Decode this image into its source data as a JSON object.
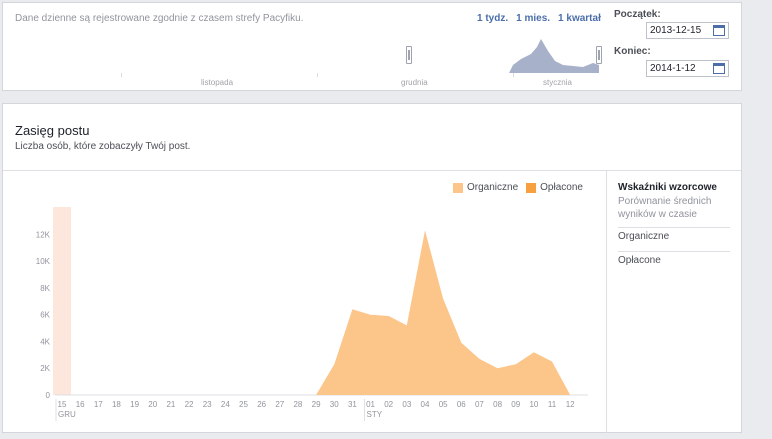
{
  "top": {
    "timezone_note": "Dane dzienne są rejestrowane zgodnie z czasem strefy Pacyfiku.",
    "range_links": [
      "1 tydz.",
      "1 mies.",
      "1 kwartał"
    ],
    "timeline_labels": [
      "listopada",
      "grudnia",
      "stycznia"
    ],
    "start_label": "Początek:",
    "start_value": "2013-12-15",
    "end_label": "Koniec:",
    "end_value": "2014-1-12"
  },
  "main": {
    "title": "Zasięg postu",
    "subtitle": "Liczba osób, które zobaczyły Twój post.",
    "legend": [
      {
        "label": "Organiczne",
        "color": "#fcc58a"
      },
      {
        "label": "Opłacone",
        "color": "#f6a040"
      }
    ],
    "sidebar": {
      "heading": "Wskaźniki wzorcowe",
      "description": "Porównanie średnich wyników w czasie",
      "items": [
        "Organiczne",
        "Opłacone"
      ]
    }
  },
  "chart_data": {
    "type": "area",
    "x": [
      "15",
      "16",
      "17",
      "18",
      "19",
      "20",
      "21",
      "22",
      "23",
      "24",
      "25",
      "26",
      "27",
      "28",
      "29",
      "30",
      "31",
      "01",
      "02",
      "03",
      "04",
      "05",
      "06",
      "07",
      "08",
      "09",
      "10",
      "11",
      "12"
    ],
    "month_labels": [
      {
        "at": "15",
        "label": "GRU"
      },
      {
        "at": "01",
        "label": "STY"
      }
    ],
    "y_ticks": [
      "0",
      "2K",
      "4K",
      "6K",
      "8K",
      "10K",
      "12K"
    ],
    "ylim": [
      0,
      13000
    ],
    "highlight_category": "15",
    "series": [
      {
        "name": "Organiczne",
        "color": "#fcc58a",
        "values": [
          0,
          0,
          0,
          0,
          0,
          0,
          0,
          0,
          0,
          0,
          0,
          0,
          0,
          0,
          0,
          2300,
          6400,
          6000,
          5900,
          5200,
          12300,
          7200,
          3900,
          2700,
          2000,
          2300,
          3200,
          2500,
          0
        ]
      },
      {
        "name": "Opłacone",
        "color": "#f6a040",
        "values": [
          0,
          0,
          0,
          0,
          0,
          0,
          0,
          0,
          0,
          0,
          0,
          0,
          0,
          0,
          0,
          0,
          0,
          0,
          0,
          0,
          0,
          0,
          0,
          0,
          0,
          0,
          0,
          0,
          0
        ]
      }
    ]
  }
}
